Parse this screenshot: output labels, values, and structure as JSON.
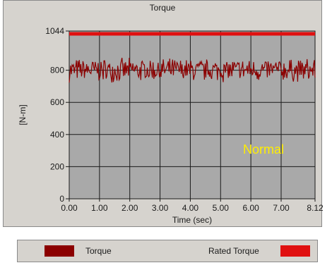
{
  "chart_data": {
    "type": "line",
    "title": "Torque",
    "xlabel": "Time (sec)",
    "ylabel": "[N-m]",
    "xlim": [
      0.0,
      8.12
    ],
    "ylim": [
      0,
      1044
    ],
    "x_ticks": [
      "0.00",
      "1.00",
      "2.00",
      "3.00",
      "4.00",
      "5.00",
      "6.00",
      "7.00",
      "8.12"
    ],
    "y_ticks": [
      "0",
      "200",
      "400",
      "600",
      "800",
      "1044"
    ],
    "grid": true,
    "annotation": "Normal",
    "series": [
      {
        "name": "Torque",
        "color": "#8b0000",
        "mean": 800,
        "min": 720,
        "max": 880,
        "x": [
          0.0,
          8.12
        ],
        "y": [
          800,
          800
        ]
      },
      {
        "name": "Rated Torque",
        "color": "#e01010",
        "x": [
          0.0,
          8.12
        ],
        "y": [
          1044,
          1044
        ]
      }
    ]
  },
  "colors": {
    "plot_bg": "#a9a9a9",
    "panel_bg": "#d6d3ce",
    "annotation": "#ffee00"
  }
}
